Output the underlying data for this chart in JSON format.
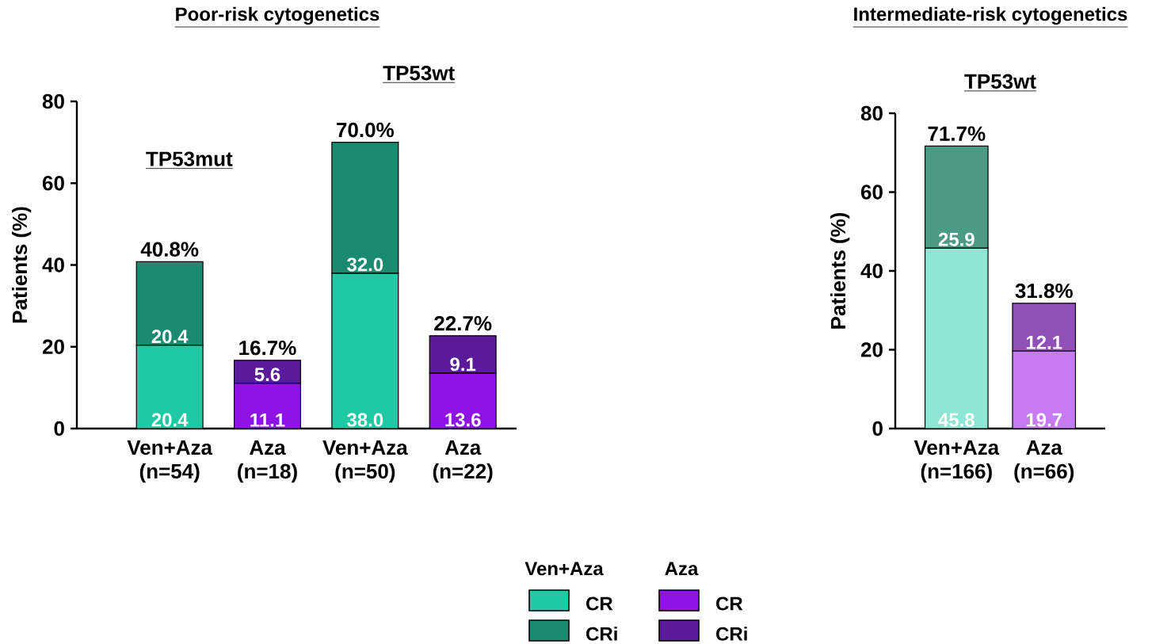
{
  "chart_data": [
    {
      "type": "bar",
      "stacked": true,
      "title": "Poor-risk cytogenetics",
      "ylabel": "Patients (%)",
      "categories": [
        "Ven+Aza (n=54)",
        "Aza (n=18)",
        "Ven+Aza (n=50)",
        "Aza (n=22)"
      ],
      "series": [
        {
          "name": "CR",
          "color": "#1fc9a4",
          "values": [
            20.4,
            null,
            38.0,
            null
          ],
          "value_labels": [
            "20.4",
            null,
            "38.0",
            null
          ]
        },
        {
          "name": "CRi",
          "color": "#1a8a70",
          "values": [
            20.4,
            null,
            32.0,
            null
          ],
          "value_labels": [
            "20.4",
            null,
            "32.0",
            null
          ]
        },
        {
          "name": "CR",
          "color": "#8f12e6",
          "values": [
            null,
            11.1,
            null,
            13.6
          ],
          "value_labels": [
            null,
            "11.1",
            null,
            "13.6"
          ]
        },
        {
          "name": "CRi",
          "color": "#5a1a9a",
          "values": [
            null,
            5.6,
            null,
            9.1
          ],
          "value_labels": [
            null,
            "5.6",
            null,
            "9.1"
          ]
        }
      ],
      "totals": [
        "40.8%",
        "16.7%",
        "70.0%",
        "22.7%"
      ],
      "ylim": [
        0,
        80
      ],
      "yticks": [
        0,
        20,
        40,
        60,
        80
      ],
      "legend": "bottom",
      "annotations": [
        "TP53mut",
        "TP53wt",
        "Ven+Aza",
        "Aza"
      ]
    },
    {
      "type": "bar",
      "stacked": true,
      "title": "Intermediate-risk cytogenetics",
      "ylabel": "Patients (%)",
      "categories": [
        "Ven+Aza (n=166)",
        "Aza (n=66)"
      ],
      "series": [
        {
          "color": "#8ee6d4",
          "values": [
            45.8,
            null
          ],
          "value_labels": [
            "45.8",
            null
          ]
        },
        {
          "color": "#4a9a85",
          "values": [
            25.9,
            null
          ],
          "value_labels": [
            "25.9",
            null
          ]
        },
        {
          "color": "#c67cf0",
          "values": [
            null,
            19.7
          ],
          "value_labels": [
            null,
            "19.7"
          ]
        },
        {
          "color": "#9050b8",
          "values": [
            null,
            12.1
          ],
          "value_labels": [
            null,
            "12.1"
          ]
        }
      ],
      "totals": [
        "71.7%",
        "31.8%"
      ],
      "ylim": [
        0,
        80
      ],
      "yticks": [
        0,
        20,
        40,
        60,
        80
      ],
      "annotations": [
        "TP53wt"
      ]
    }
  ]
}
